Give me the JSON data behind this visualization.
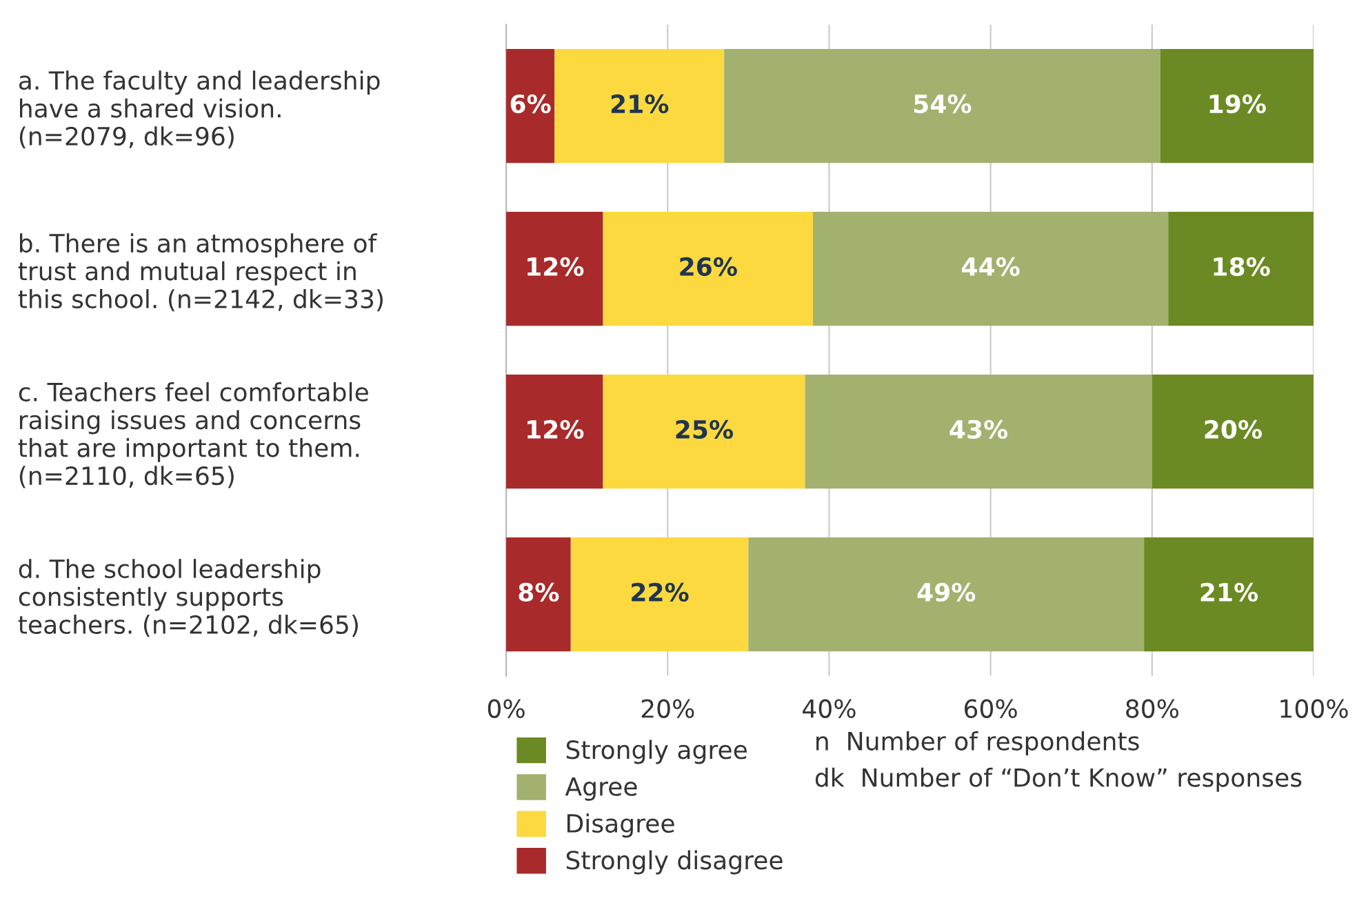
{
  "chart_data": {
    "type": "bar",
    "orientation": "horizontal",
    "stacked": true,
    "categories": [
      "a. The faculty and leadership\nhave a shared vision.\n(n=2079, dk=96)",
      "b. There is an atmosphere of\ntrust and mutual respect in\nthis school. (n=2142, dk=33)",
      "c. Teachers feel comfortable\nraising issues and concerns\nthat are important to them.\n(n=2110, dk=65)",
      "d. The school leadership\nconsistently supports\nteachers. (n=2102, dk=65)"
    ],
    "series": [
      {
        "name": "Strongly disagree",
        "color": "#a92a2a",
        "values": [
          6,
          12,
          12,
          8
        ],
        "value_labels": [
          "6%",
          "12%",
          "12%",
          "8%"
        ]
      },
      {
        "name": "Disagree",
        "color": "#fcd93f",
        "values": [
          21,
          26,
          25,
          22
        ],
        "value_labels": [
          "21%",
          "26%",
          "25%",
          "22%"
        ]
      },
      {
        "name": "Agree",
        "color": "#a3b16f",
        "values": [
          54,
          44,
          43,
          49
        ],
        "value_labels": [
          "54%",
          "44%",
          "43%",
          "49%"
        ]
      },
      {
        "name": "Strongly agree",
        "color": "#6b8a23",
        "values": [
          19,
          18,
          20,
          21
        ],
        "value_labels": [
          "19%",
          "18%",
          "20%",
          "21%"
        ]
      }
    ],
    "xlim": [
      0,
      100
    ],
    "xticks": [
      {
        "value": 0,
        "label": "0%"
      },
      {
        "value": 20,
        "label": "20%"
      },
      {
        "value": 40,
        "label": "40%"
      },
      {
        "value": 60,
        "label": "60%"
      },
      {
        "value": 80,
        "label": "80%"
      },
      {
        "value": 100,
        "label": "100%"
      }
    ],
    "grid": "x",
    "legend": "bottom",
    "annotations": [
      "n  Number of respondents",
      "dk  Number of “Don’t Know” responses"
    ]
  }
}
